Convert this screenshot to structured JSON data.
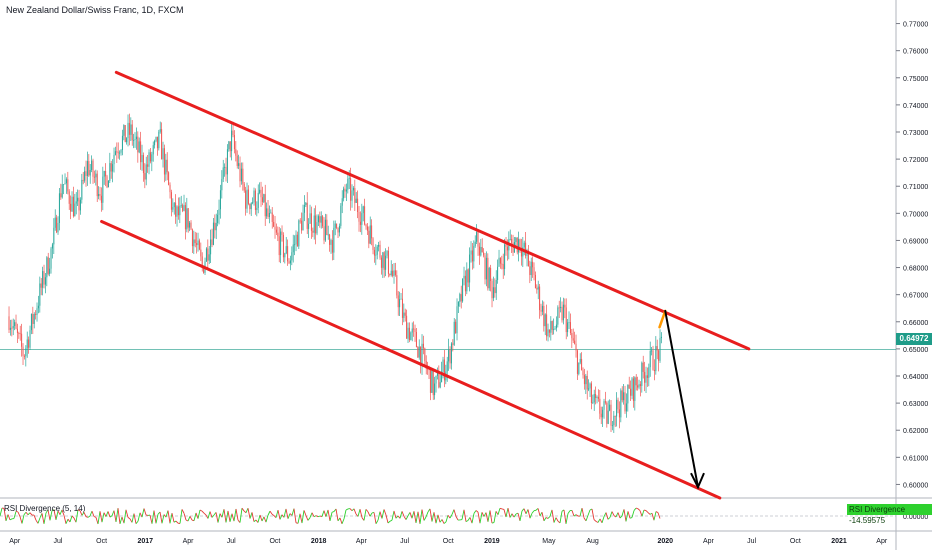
{
  "header": {
    "symbol_title": "New Zealand Dollar/Swiss Franc, 1D, FXCM"
  },
  "price_axis": {
    "ticks": [
      "0.77000",
      "0.76000",
      "0.75000",
      "0.74000",
      "0.73000",
      "0.72000",
      "0.71000",
      "0.70000",
      "0.69000",
      "0.68000",
      "0.67000",
      "0.66000",
      "0.65000",
      "0.64000",
      "0.63000",
      "0.62000",
      "0.61000",
      "0.60000"
    ],
    "last_price_label": "0.64972"
  },
  "time_axis": {
    "labels": [
      "Apr",
      "Jul",
      "Oct",
      "2017",
      "Apr",
      "Jul",
      "Oct",
      "2018",
      "Apr",
      "Jul",
      "Oct",
      "2019",
      "May",
      "Aug",
      "2020",
      "Apr",
      "Jul",
      "Oct",
      "2021",
      "Apr"
    ]
  },
  "indicator": {
    "name_label": "RSI Divergence (5, 14)",
    "badge_text": "RSI Divergence -14.59575"
  },
  "colors": {
    "up": "#26a69a",
    "down": "#ef5350",
    "channel": "#e81e1e",
    "arrow": "#000000",
    "projection": "#ff9800",
    "last_price": "#1f9c89",
    "rsi_line_up": "#2ed12e",
    "rsi_line_down": "#e53935"
  },
  "chart_data": {
    "type": "candlestick",
    "title": "New Zealand Dollar/Swiss Franc, 1D, FXCM",
    "y_range": [
      0.595,
      0.775
    ],
    "last_price": 0.64972,
    "x_labels": [
      "Apr",
      "Jul",
      "Oct",
      "2017",
      "Apr",
      "Jul",
      "Oct",
      "2018",
      "Apr",
      "Jul",
      "Oct",
      "2019",
      "May",
      "Aug",
      "2020",
      "Apr",
      "Jul",
      "Oct",
      "2021",
      "Apr"
    ],
    "close_path": [
      {
        "t": "2016-03-20",
        "close": 0.662
      },
      {
        "t": "2016-04-20",
        "close": 0.648
      },
      {
        "t": "2016-05-20",
        "close": 0.668
      },
      {
        "t": "2016-06-20",
        "close": 0.688
      },
      {
        "t": "2016-07-10",
        "close": 0.712
      },
      {
        "t": "2016-08-10",
        "close": 0.7
      },
      {
        "t": "2016-09-01",
        "close": 0.718
      },
      {
        "t": "2016-10-01",
        "close": 0.708
      },
      {
        "t": "2016-11-01",
        "close": 0.725
      },
      {
        "t": "2016-12-01",
        "close": 0.73
      },
      {
        "t": "2017-01-01",
        "close": 0.716
      },
      {
        "t": "2017-02-01",
        "close": 0.727
      },
      {
        "t": "2017-03-01",
        "close": 0.7
      },
      {
        "t": "2017-04-01",
        "close": 0.698
      },
      {
        "t": "2017-05-01",
        "close": 0.68
      },
      {
        "t": "2017-06-01",
        "close": 0.7
      },
      {
        "t": "2017-07-01",
        "close": 0.728
      },
      {
        "t": "2017-08-01",
        "close": 0.705
      },
      {
        "t": "2017-09-01",
        "close": 0.705
      },
      {
        "t": "2017-10-01",
        "close": 0.692
      },
      {
        "t": "2017-11-01",
        "close": 0.683
      },
      {
        "t": "2017-12-01",
        "close": 0.7
      },
      {
        "t": "2018-01-01",
        "close": 0.695
      },
      {
        "t": "2018-02-01",
        "close": 0.69
      },
      {
        "t": "2018-03-01",
        "close": 0.71
      },
      {
        "t": "2018-04-01",
        "close": 0.7
      },
      {
        "t": "2018-05-01",
        "close": 0.688
      },
      {
        "t": "2018-06-01",
        "close": 0.68
      },
      {
        "t": "2018-07-01",
        "close": 0.66
      },
      {
        "t": "2018-08-01",
        "close": 0.65
      },
      {
        "t": "2018-09-01",
        "close": 0.635
      },
      {
        "t": "2018-10-01",
        "close": 0.646
      },
      {
        "t": "2018-11-01",
        "close": 0.672
      },
      {
        "t": "2018-12-01",
        "close": 0.69
      },
      {
        "t": "2019-01-01",
        "close": 0.672
      },
      {
        "t": "2019-02-01",
        "close": 0.688
      },
      {
        "t": "2019-03-01",
        "close": 0.69
      },
      {
        "t": "2019-04-01",
        "close": 0.675
      },
      {
        "t": "2019-05-01",
        "close": 0.655
      },
      {
        "t": "2019-06-01",
        "close": 0.664
      },
      {
        "t": "2019-07-01",
        "close": 0.645
      },
      {
        "t": "2019-08-01",
        "close": 0.63
      },
      {
        "t": "2019-09-01",
        "close": 0.625
      },
      {
        "t": "2019-10-01",
        "close": 0.63
      },
      {
        "t": "2019-11-01",
        "close": 0.637
      },
      {
        "t": "2019-12-01",
        "close": 0.645
      },
      {
        "t": "2019-12-25",
        "close": 0.65
      }
    ],
    "annotations": {
      "channel_upper": [
        {
          "t": "2016-11-01",
          "price": 0.752
        },
        {
          "t": "2020-06-25",
          "price": 0.65
        }
      ],
      "channel_lower": [
        {
          "t": "2016-10-01",
          "price": 0.697
        },
        {
          "t": "2020-04-25",
          "price": 0.595
        }
      ],
      "projection_up": [
        {
          "t": "2019-12-20",
          "price": 0.658
        },
        {
          "t": "2020-01-01",
          "price": 0.664
        }
      ],
      "arrow_down": [
        {
          "t": "2020-01-01",
          "price": 0.664
        },
        {
          "t": "2020-03-10",
          "price": 0.599
        }
      ]
    },
    "indicator": {
      "name": "RSI Divergence (5, 14)",
      "last_value": -14.59575,
      "zero_line": 0
    }
  }
}
